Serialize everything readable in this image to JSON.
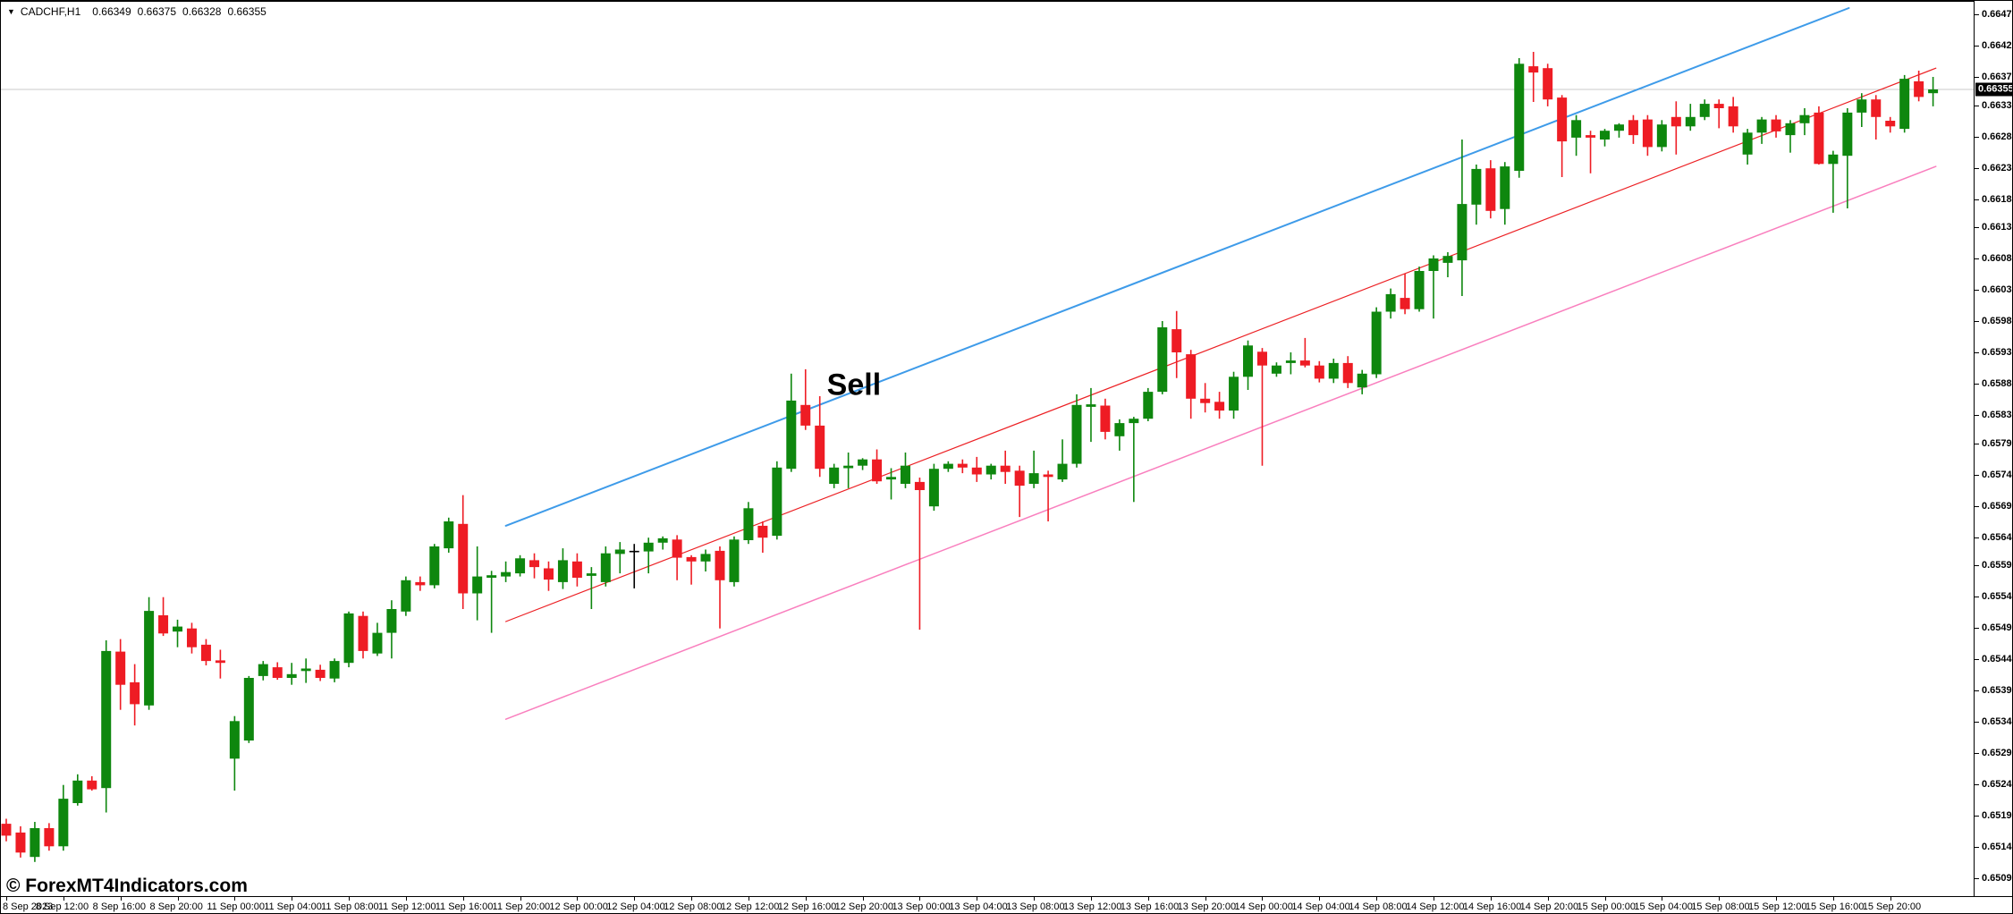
{
  "header": {
    "symbol_period": "CADCHF,H1",
    "open": "0.66349",
    "high": "0.66375",
    "low": "0.66328",
    "close": "0.66355"
  },
  "watermark": {
    "text": "© ForexMT4Indicators.com"
  },
  "annotations": {
    "sell": {
      "label": "Sell",
      "index": 58,
      "price": 0.6588
    }
  },
  "colors": {
    "bull_candle": "#0e870e",
    "bear_candle": "#ee1c24",
    "neutral_candle": "#000000",
    "upper_channel": "#3e9be9",
    "middle_channel": "#ec2024",
    "lower_channel": "#f97fbe",
    "current_price_line": "#c8c8c8",
    "price_tag_bg": "#000000",
    "price_tag_text": "#ffffff"
  },
  "chart_data": {
    "type": "candlestick",
    "symbol": "CADCHF",
    "timeframe": "H1",
    "current_price": 0.66355,
    "grid": false,
    "y_axis": {
      "side": "right",
      "ticks": [
        0.66475,
        0.66425,
        0.66375,
        0.6633,
        0.6628,
        0.6623,
        0.6618,
        0.66135,
        0.66085,
        0.66035,
        0.65985,
        0.65935,
        0.65885,
        0.65835,
        0.6579,
        0.6574,
        0.6569,
        0.6564,
        0.65595,
        0.65545,
        0.65495,
        0.65445,
        0.65395,
        0.65345,
        0.65295,
        0.65245,
        0.65195,
        0.65145,
        0.65095
      ]
    },
    "x_axis": {
      "candles_per_label": 4,
      "labels": [
        "8 Sep 2023",
        "8 Sep 12:00",
        "8 Sep 16:00",
        "8 Sep 20:00",
        "11 Sep 00:00",
        "11 Sep 04:00",
        "11 Sep 08:00",
        "11 Sep 12:00",
        "11 Sep 16:00",
        "11 Sep 20:00",
        "12 Sep 00:00",
        "12 Sep 04:00",
        "12 Sep 08:00",
        "12 Sep 12:00",
        "12 Sep 16:00",
        "12 Sep 20:00",
        "13 Sep 00:00",
        "13 Sep 04:00",
        "13 Sep 08:00",
        "13 Sep 12:00",
        "13 Sep 16:00",
        "13 Sep 20:00",
        "14 Sep 00:00",
        "14 Sep 04:00",
        "14 Sep 08:00",
        "14 Sep 12:00",
        "14 Sep 16:00",
        "14 Sep 20:00",
        "15 Sep 00:00",
        "15 Sep 04:00",
        "15 Sep 08:00",
        "15 Sep 12:00",
        "15 Sep 16:00",
        "15 Sep 20:00"
      ]
    },
    "lines": [
      {
        "name": "upper-channel",
        "color": "#3e9be9",
        "width": 2,
        "x1_index": 35.0,
        "price1": 0.65658,
        "x2_index": 129.1,
        "price2": 0.66485
      },
      {
        "name": "middle-channel",
        "color": "#ec2024",
        "width": 1.2,
        "x1_index": 35.0,
        "price1": 0.65505,
        "x2_index": 135.2,
        "price2": 0.66389
      },
      {
        "name": "lower-channel",
        "color": "#f97fbe",
        "width": 1.5,
        "x1_index": 35.0,
        "price1": 0.65349,
        "x2_index": 135.2,
        "price2": 0.66232
      }
    ],
    "candles": [
      [
        0.65182,
        0.6519,
        0.65154,
        0.65163
      ],
      [
        0.65168,
        0.65178,
        0.65128,
        0.65136
      ],
      [
        0.65129,
        0.65185,
        0.65121,
        0.65175
      ],
      [
        0.65175,
        0.65183,
        0.65139,
        0.65146
      ],
      [
        0.65146,
        0.65244,
        0.65139,
        0.65222
      ],
      [
        0.65215,
        0.65261,
        0.65211,
        0.65251
      ],
      [
        0.65251,
        0.65258,
        0.65235,
        0.65237
      ],
      [
        0.65239,
        0.65475,
        0.652,
        0.65458
      ],
      [
        0.65457,
        0.65477,
        0.65364,
        0.65404
      ],
      [
        0.65408,
        0.65437,
        0.65339,
        0.65373
      ],
      [
        0.65371,
        0.65544,
        0.65364,
        0.65522
      ],
      [
        0.65515,
        0.65544,
        0.65482,
        0.65486
      ],
      [
        0.65489,
        0.65508,
        0.65464,
        0.65497
      ],
      [
        0.65494,
        0.65503,
        0.65454,
        0.65464
      ],
      [
        0.65468,
        0.65477,
        0.65435,
        0.65442
      ],
      [
        0.65443,
        0.6546,
        0.65414,
        0.65439
      ],
      [
        0.65286,
        0.65354,
        0.65235,
        0.65346
      ],
      [
        0.65315,
        0.65418,
        0.65311,
        0.65415
      ],
      [
        0.65418,
        0.65442,
        0.65411,
        0.65437
      ],
      [
        0.65432,
        0.6544,
        0.65412,
        0.65415
      ],
      [
        0.65415,
        0.65439,
        0.65404,
        0.65421
      ],
      [
        0.65426,
        0.65446,
        0.65407,
        0.6543
      ],
      [
        0.65428,
        0.65436,
        0.6541,
        0.65415
      ],
      [
        0.65414,
        0.65446,
        0.65408,
        0.65442
      ],
      [
        0.65439,
        0.65521,
        0.65432,
        0.65518
      ],
      [
        0.65514,
        0.65521,
        0.65446,
        0.65458
      ],
      [
        0.65454,
        0.65503,
        0.6545,
        0.65487
      ],
      [
        0.65487,
        0.65539,
        0.65446,
        0.65525
      ],
      [
        0.65521,
        0.65577,
        0.65514,
        0.65571
      ],
      [
        0.65568,
        0.65577,
        0.65554,
        0.65563
      ],
      [
        0.65563,
        0.65629,
        0.65558,
        0.65625
      ],
      [
        0.65622,
        0.65671,
        0.65615,
        0.65665
      ],
      [
        0.65661,
        0.65707,
        0.65525,
        0.6555
      ],
      [
        0.6555,
        0.65625,
        0.65507,
        0.65577
      ],
      [
        0.65575,
        0.65586,
        0.65487,
        0.65579
      ],
      [
        0.65577,
        0.65601,
        0.65568,
        0.65584
      ],
      [
        0.65582,
        0.65611,
        0.65577,
        0.65606
      ],
      [
        0.65603,
        0.65614,
        0.65574,
        0.65592
      ],
      [
        0.6559,
        0.65601,
        0.65554,
        0.65572
      ],
      [
        0.65568,
        0.65622,
        0.65557,
        0.65603
      ],
      [
        0.65601,
        0.65614,
        0.65561,
        0.65575
      ],
      [
        0.65578,
        0.65592,
        0.65525,
        0.65582
      ],
      [
        0.65568,
        0.65625,
        0.65561,
        0.65614
      ],
      [
        0.65613,
        0.65632,
        0.65582,
        0.6562
      ],
      [
        0.65618,
        0.65629,
        0.65558,
        0.65618
      ],
      [
        0.65617,
        0.65639,
        0.65582,
        0.65631
      ],
      [
        0.65631,
        0.65641,
        0.6562,
        0.65638
      ],
      [
        0.65636,
        0.65643,
        0.65571,
        0.65607
      ],
      [
        0.65608,
        0.65611,
        0.65564,
        0.65601
      ],
      [
        0.65601,
        0.6562,
        0.65585,
        0.65613
      ],
      [
        0.65618,
        0.65625,
        0.65494,
        0.65571
      ],
      [
        0.65568,
        0.65641,
        0.65561,
        0.65636
      ],
      [
        0.65635,
        0.65696,
        0.65629,
        0.65686
      ],
      [
        0.65658,
        0.65665,
        0.65615,
        0.65639
      ],
      [
        0.65642,
        0.65761,
        0.65636,
        0.65751
      ],
      [
        0.65749,
        0.65901,
        0.65744,
        0.65858
      ],
      [
        0.65851,
        0.65908,
        0.65811,
        0.65818
      ],
      [
        0.65818,
        0.65865,
        0.65736,
        0.65749
      ],
      [
        0.65725,
        0.65757,
        0.65718,
        0.65751
      ],
      [
        0.6575,
        0.65775,
        0.65718,
        0.65754
      ],
      [
        0.65754,
        0.65766,
        0.65747,
        0.65764
      ],
      [
        0.65764,
        0.6578,
        0.65725,
        0.65729
      ],
      [
        0.65732,
        0.6575,
        0.657,
        0.65736
      ],
      [
        0.65725,
        0.65775,
        0.65718,
        0.65754
      ],
      [
        0.65728,
        0.65735,
        0.65492,
        0.65715
      ],
      [
        0.65689,
        0.65757,
        0.65682,
        0.65749
      ],
      [
        0.65749,
        0.65761,
        0.65744,
        0.65757
      ],
      [
        0.65757,
        0.65764,
        0.65742,
        0.65751
      ],
      [
        0.65751,
        0.65768,
        0.65728,
        0.6574
      ],
      [
        0.6574,
        0.65757,
        0.65732,
        0.65754
      ],
      [
        0.65754,
        0.65778,
        0.65725,
        0.65744
      ],
      [
        0.65746,
        0.65754,
        0.65672,
        0.65722
      ],
      [
        0.65725,
        0.65778,
        0.65718,
        0.65742
      ],
      [
        0.6574,
        0.65746,
        0.65665,
        0.65736
      ],
      [
        0.65732,
        0.65796,
        0.65728,
        0.65757
      ],
      [
        0.65757,
        0.65868,
        0.65751,
        0.65851
      ],
      [
        0.65848,
        0.65878,
        0.65792,
        0.65852
      ],
      [
        0.6585,
        0.65861,
        0.65796,
        0.65808
      ],
      [
        0.65801,
        0.65828,
        0.65778,
        0.65822
      ],
      [
        0.65822,
        0.65832,
        0.65696,
        0.65829
      ],
      [
        0.65829,
        0.65878,
        0.65825,
        0.65872
      ],
      [
        0.65872,
        0.65985,
        0.65868,
        0.65975
      ],
      [
        0.65972,
        0.66001,
        0.65894,
        0.65935
      ],
      [
        0.65932,
        0.65939,
        0.65829,
        0.65861
      ],
      [
        0.65861,
        0.65886,
        0.65839,
        0.65854
      ],
      [
        0.65856,
        0.65872,
        0.65829,
        0.65842
      ],
      [
        0.65842,
        0.65904,
        0.65829,
        0.65896
      ],
      [
        0.65896,
        0.65954,
        0.65875,
        0.65946
      ],
      [
        0.65936,
        0.65942,
        0.65754,
        0.65914
      ],
      [
        0.65901,
        0.65919,
        0.65896,
        0.65914
      ],
      [
        0.65918,
        0.65935,
        0.659,
        0.65922
      ],
      [
        0.65922,
        0.65958,
        0.65911,
        0.65914
      ],
      [
        0.65914,
        0.65921,
        0.65887,
        0.65893
      ],
      [
        0.65893,
        0.65925,
        0.65886,
        0.65918
      ],
      [
        0.65918,
        0.65929,
        0.65878,
        0.65886
      ],
      [
        0.65879,
        0.65907,
        0.65868,
        0.65901
      ],
      [
        0.659,
        0.66007,
        0.65894,
        0.66
      ],
      [
        0.66,
        0.66037,
        0.65989,
        0.66028
      ],
      [
        0.66022,
        0.66061,
        0.65996,
        0.66004
      ],
      [
        0.66004,
        0.66072,
        0.66,
        0.66065
      ],
      [
        0.66065,
        0.6609,
        0.65989,
        0.66085
      ],
      [
        0.66078,
        0.66095,
        0.66055,
        0.66089
      ],
      [
        0.66082,
        0.66275,
        0.66025,
        0.66172
      ],
      [
        0.66171,
        0.66235,
        0.66139,
        0.66228
      ],
      [
        0.66229,
        0.66242,
        0.66149,
        0.66161
      ],
      [
        0.66164,
        0.66239,
        0.66139,
        0.66232
      ],
      [
        0.66225,
        0.66405,
        0.66214,
        0.66396
      ],
      [
        0.66392,
        0.66415,
        0.66335,
        0.66382
      ],
      [
        0.66389,
        0.66396,
        0.66328,
        0.66339
      ],
      [
        0.66342,
        0.66346,
        0.66215,
        0.66272
      ],
      [
        0.66278,
        0.66314,
        0.66249,
        0.66306
      ],
      [
        0.66282,
        0.66289,
        0.66221,
        0.66278
      ],
      [
        0.66275,
        0.66292,
        0.66264,
        0.66289
      ],
      [
        0.66289,
        0.66301,
        0.66278,
        0.66299
      ],
      [
        0.66306,
        0.66314,
        0.66268,
        0.66282
      ],
      [
        0.66307,
        0.66314,
        0.66249,
        0.66263
      ],
      [
        0.66263,
        0.66306,
        0.66256,
        0.66299
      ],
      [
        0.66311,
        0.66336,
        0.66251,
        0.66296
      ],
      [
        0.66296,
        0.66332,
        0.66289,
        0.66311
      ],
      [
        0.66311,
        0.66339,
        0.66306,
        0.66332
      ],
      [
        0.66332,
        0.66339,
        0.66293,
        0.66325
      ],
      [
        0.66328,
        0.66343,
        0.66286,
        0.66296
      ],
      [
        0.66251,
        0.66292,
        0.66235,
        0.66286
      ],
      [
        0.66286,
        0.66311,
        0.66268,
        0.66307
      ],
      [
        0.66307,
        0.66314,
        0.66278,
        0.66288
      ],
      [
        0.66282,
        0.66306,
        0.66254,
        0.66301
      ],
      [
        0.66301,
        0.66325,
        0.66282,
        0.66314
      ],
      [
        0.66318,
        0.66328,
        0.66235,
        0.66236
      ],
      [
        0.66236,
        0.66257,
        0.66158,
        0.66251
      ],
      [
        0.66249,
        0.66325,
        0.66165,
        0.66318
      ],
      [
        0.66318,
        0.66349,
        0.66295,
        0.66339
      ],
      [
        0.66339,
        0.66346,
        0.66275,
        0.66311
      ],
      [
        0.66305,
        0.66311,
        0.66286,
        0.66296
      ],
      [
        0.66292,
        0.66378,
        0.66286,
        0.66372
      ],
      [
        0.66368,
        0.66385,
        0.66336,
        0.66343
      ],
      [
        0.66349,
        0.66375,
        0.66328,
        0.66355
      ]
    ]
  }
}
